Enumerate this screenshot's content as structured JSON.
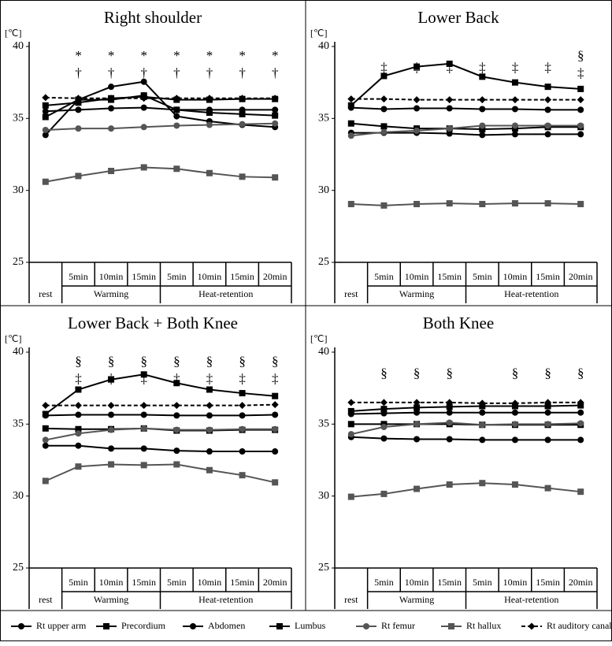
{
  "chart_data": [
    {
      "type": "line",
      "title": "Right shoulder",
      "ylabel": "[℃]",
      "ylim": [
        25,
        40
      ],
      "yticks": [
        25,
        30,
        35,
        40
      ],
      "categories": [
        "rest",
        "5min",
        "10min",
        "15min",
        "5min",
        "10min",
        "15min",
        "20min"
      ],
      "groups": [
        "Warming",
        "Heat-retention"
      ],
      "annotations": [
        null,
        [
          "*",
          "†"
        ],
        [
          "*",
          "†"
        ],
        [
          "*",
          "†"
        ],
        [
          "*",
          "†"
        ],
        [
          "*",
          "†"
        ],
        [
          "*",
          "†"
        ],
        [
          "*",
          "†"
        ]
      ],
      "series": [
        {
          "values": [
            33.85,
            36.3,
            37.2,
            37.55,
            35.15,
            34.8,
            34.55,
            34.4
          ]
        },
        {
          "values": [
            35.9,
            36.1,
            36.4,
            36.5,
            36.3,
            36.3,
            36.35,
            36.35
          ]
        },
        {
          "values": [
            35.5,
            35.6,
            35.7,
            35.75,
            35.6,
            35.6,
            35.6,
            35.6
          ]
        },
        {
          "values": [
            35.1,
            36.3,
            36.3,
            36.6,
            35.6,
            35.4,
            35.3,
            35.2
          ]
        },
        {
          "values": [
            34.2,
            34.3,
            34.3,
            34.4,
            34.5,
            34.55,
            34.6,
            34.65
          ]
        },
        {
          "values": [
            30.6,
            31.0,
            31.35,
            31.6,
            31.5,
            31.2,
            30.95,
            30.9
          ]
        },
        {
          "values": [
            36.45,
            36.4,
            36.4,
            36.4,
            36.4,
            36.4,
            36.4,
            36.4
          ]
        }
      ]
    },
    {
      "type": "line",
      "title": "Lower Back",
      "ylabel": "[℃]",
      "ylim": [
        25,
        40
      ],
      "yticks": [
        25,
        30,
        35,
        40
      ],
      "categories": [
        "rest",
        "5min",
        "10min",
        "15min",
        "5min",
        "10min",
        "15min",
        "20min"
      ],
      "groups": [
        "Warming",
        "Heat-retention"
      ],
      "annotations": [
        null,
        [
          "‡"
        ],
        [
          "‡"
        ],
        [
          "‡"
        ],
        [
          "‡"
        ],
        [
          "‡"
        ],
        [
          "‡"
        ],
        [
          "§",
          "‡"
        ]
      ],
      "series": [
        {
          "values": [
            35.75,
            35.65,
            35.7,
            35.7,
            35.65,
            35.65,
            35.6,
            35.6
          ]
        },
        {
          "values": [
            34.65,
            34.45,
            34.3,
            34.3,
            34.25,
            34.3,
            34.4,
            34.4
          ]
        },
        {
          "values": [
            34.0,
            34.0,
            34.0,
            33.95,
            33.85,
            33.9,
            33.9,
            33.9
          ]
        },
        {
          "values": [
            35.9,
            37.95,
            38.6,
            38.8,
            37.9,
            37.5,
            37.2,
            37.05
          ]
        },
        {
          "values": [
            33.8,
            34.05,
            34.15,
            34.3,
            34.5,
            34.5,
            34.5,
            34.5
          ]
        },
        {
          "values": [
            29.05,
            28.95,
            29.05,
            29.1,
            29.05,
            29.1,
            29.1,
            29.05
          ]
        },
        {
          "values": [
            36.35,
            36.35,
            36.3,
            36.3,
            36.3,
            36.3,
            36.3,
            36.3
          ]
        }
      ]
    },
    {
      "type": "line",
      "title": "Lower Back + Both Knee",
      "ylabel": "[℃]",
      "ylim": [
        25,
        40
      ],
      "yticks": [
        25,
        30,
        35,
        40
      ],
      "categories": [
        "rest",
        "5min",
        "10min",
        "15min",
        "5min",
        "10min",
        "15min",
        "20min"
      ],
      "groups": [
        "Warming",
        "Heat-retention"
      ],
      "annotations": [
        null,
        [
          "§",
          "‡"
        ],
        [
          "§",
          "‡"
        ],
        [
          "§",
          "‡"
        ],
        [
          "§",
          "‡"
        ],
        [
          "§",
          "‡"
        ],
        [
          "§",
          "‡"
        ],
        [
          "§",
          "‡"
        ]
      ],
      "series": [
        {
          "values": [
            35.6,
            35.65,
            35.65,
            35.65,
            35.6,
            35.6,
            35.6,
            35.65
          ]
        },
        {
          "values": [
            34.7,
            34.65,
            34.65,
            34.7,
            34.55,
            34.55,
            34.6,
            34.6
          ]
        },
        {
          "values": [
            33.5,
            33.5,
            33.3,
            33.3,
            33.15,
            33.1,
            33.1,
            33.1
          ]
        },
        {
          "values": [
            35.7,
            37.4,
            38.1,
            38.45,
            37.85,
            37.4,
            37.15,
            36.95
          ]
        },
        {
          "values": [
            33.9,
            34.35,
            34.6,
            34.7,
            34.6,
            34.6,
            34.65,
            34.65
          ]
        },
        {
          "values": [
            31.05,
            32.05,
            32.2,
            32.15,
            32.2,
            31.8,
            31.45,
            30.95
          ]
        },
        {
          "values": [
            36.3,
            36.3,
            36.3,
            36.3,
            36.3,
            36.3,
            36.3,
            36.35
          ]
        }
      ]
    },
    {
      "type": "line",
      "title": "Both Knee",
      "ylabel": "[℃]",
      "ylim": [
        25,
        40
      ],
      "yticks": [
        25,
        30,
        35,
        40
      ],
      "categories": [
        "rest",
        "5min",
        "10min",
        "15min",
        "5min",
        "10min",
        "15min",
        "20min"
      ],
      "groups": [
        "Warming",
        "Heat-retention"
      ],
      "annotations": [
        null,
        [
          "§"
        ],
        [
          "§"
        ],
        [
          "§"
        ],
        null,
        [
          "§"
        ],
        [
          "§"
        ],
        [
          "§"
        ]
      ],
      "series": [
        {
          "values": [
            35.7,
            35.75,
            35.8,
            35.8,
            35.8,
            35.8,
            35.8,
            35.8
          ]
        },
        {
          "values": [
            35.0,
            35.0,
            35.0,
            35.0,
            34.95,
            34.95,
            34.95,
            34.95
          ]
        },
        {
          "values": [
            34.1,
            34.0,
            33.95,
            33.95,
            33.9,
            33.9,
            33.9,
            33.9
          ]
        },
        {
          "values": [
            35.9,
            36.05,
            36.15,
            36.2,
            36.25,
            36.25,
            36.25,
            36.3
          ]
        },
        {
          "values": [
            34.3,
            34.8,
            35.0,
            35.1,
            34.95,
            35.0,
            35.0,
            35.05
          ]
        },
        {
          "values": [
            29.95,
            30.15,
            30.5,
            30.8,
            30.9,
            30.8,
            30.55,
            30.3
          ]
        },
        {
          "values": [
            36.5,
            36.5,
            36.5,
            36.5,
            36.45,
            36.45,
            36.5,
            36.5
          ]
        }
      ]
    }
  ],
  "legend": [
    {
      "name": "Rt upper arm",
      "color": "#000000",
      "marker": "circle",
      "dash": false
    },
    {
      "name": "Precordium",
      "color": "#000000",
      "marker": "square",
      "dash": false
    },
    {
      "name": "Abdomen",
      "color": "#000000",
      "marker": "circle",
      "dash": false
    },
    {
      "name": "Lumbus",
      "color": "#000000",
      "marker": "square",
      "dash": false
    },
    {
      "name": "Rt femur",
      "color": "#555555",
      "marker": "circle",
      "dash": false
    },
    {
      "name": "Rt hallux",
      "color": "#555555",
      "marker": "square",
      "dash": false
    },
    {
      "name": "Rt auditory canal",
      "color": "#000000",
      "marker": "diamond",
      "dash": true
    }
  ]
}
